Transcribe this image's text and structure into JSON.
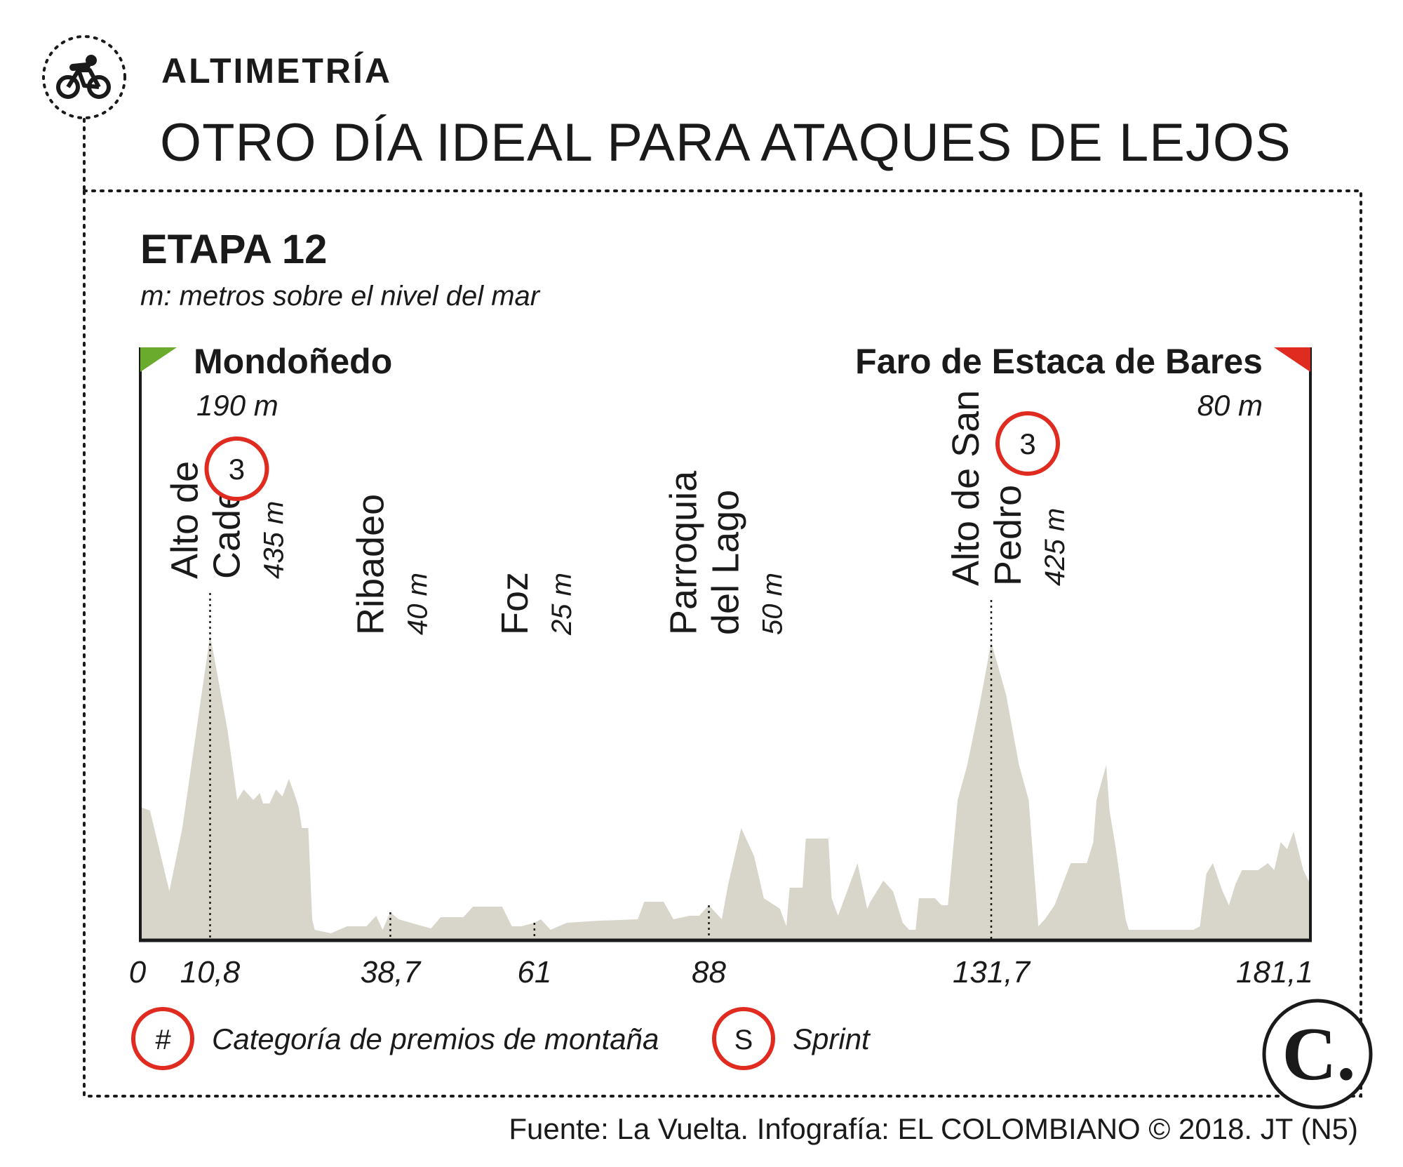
{
  "header": {
    "kicker": "ALTIMETRÍA",
    "headline": "OTRO DÍA IDEAL PARA ATAQUES DE LEJOS",
    "cyclist_icon": "cyclist-icon"
  },
  "stage": {
    "title": "ETAPA 12",
    "note": "m: metros sobre el nivel del mar"
  },
  "start": {
    "name": "Mondoñedo",
    "altitude": "190 m",
    "color": "#6aab2e"
  },
  "finish": {
    "name": "Faro de Estaca de Bares",
    "altitude": "80 m",
    "color": "#e02b20"
  },
  "chart_data": {
    "type": "area",
    "xlim": [
      0,
      181.1
    ],
    "ylim": [
      0,
      500
    ],
    "fill_color": "#d8d6ca",
    "x_ticks": [
      "0",
      "10,8",
      "38,7",
      "61",
      "88",
      "131,7",
      "181,1"
    ],
    "x_tick_values": [
      0,
      10.8,
      38.7,
      61,
      88,
      131.7,
      181.1
    ],
    "profile": [
      {
        "x": 0,
        "y": 190
      },
      {
        "x": 1.5,
        "y": 185
      },
      {
        "x": 4.5,
        "y": 70
      },
      {
        "x": 6.5,
        "y": 160
      },
      {
        "x": 10.8,
        "y": 435
      },
      {
        "x": 13.5,
        "y": 300
      },
      {
        "x": 15,
        "y": 200
      },
      {
        "x": 16,
        "y": 215
      },
      {
        "x": 17.5,
        "y": 200
      },
      {
        "x": 18.5,
        "y": 210
      },
      {
        "x": 19,
        "y": 195
      },
      {
        "x": 20,
        "y": 195
      },
      {
        "x": 21,
        "y": 215
      },
      {
        "x": 22,
        "y": 205
      },
      {
        "x": 23,
        "y": 230
      },
      {
        "x": 23.8,
        "y": 210
      },
      {
        "x": 24.5,
        "y": 190
      },
      {
        "x": 25,
        "y": 160
      },
      {
        "x": 26,
        "y": 160
      },
      {
        "x": 26.6,
        "y": 30
      },
      {
        "x": 27,
        "y": 15
      },
      {
        "x": 29.5,
        "y": 10
      },
      {
        "x": 32,
        "y": 20
      },
      {
        "x": 35,
        "y": 20
      },
      {
        "x": 36.5,
        "y": 35
      },
      {
        "x": 37.5,
        "y": 15
      },
      {
        "x": 38.7,
        "y": 40
      },
      {
        "x": 40,
        "y": 30
      },
      {
        "x": 43,
        "y": 22
      },
      {
        "x": 45,
        "y": 17
      },
      {
        "x": 46.5,
        "y": 33
      },
      {
        "x": 50,
        "y": 33
      },
      {
        "x": 51.5,
        "y": 48
      },
      {
        "x": 56,
        "y": 48
      },
      {
        "x": 57.5,
        "y": 20
      },
      {
        "x": 59,
        "y": 20
      },
      {
        "x": 61,
        "y": 25
      },
      {
        "x": 62,
        "y": 30
      },
      {
        "x": 63.5,
        "y": 15
      },
      {
        "x": 66,
        "y": 25
      },
      {
        "x": 71,
        "y": 28
      },
      {
        "x": 77,
        "y": 30
      },
      {
        "x": 78,
        "y": 55
      },
      {
        "x": 81,
        "y": 55
      },
      {
        "x": 82.5,
        "y": 30
      },
      {
        "x": 85,
        "y": 35
      },
      {
        "x": 86.5,
        "y": 35
      },
      {
        "x": 88,
        "y": 50
      },
      {
        "x": 89,
        "y": 40
      },
      {
        "x": 90,
        "y": 30
      },
      {
        "x": 91,
        "y": 80
      },
      {
        "x": 93,
        "y": 160
      },
      {
        "x": 95,
        "y": 120
      },
      {
        "x": 96.5,
        "y": 60
      },
      {
        "x": 99,
        "y": 45
      },
      {
        "x": 100,
        "y": 20
      },
      {
        "x": 100.5,
        "y": 75
      },
      {
        "x": 102.5,
        "y": 75
      },
      {
        "x": 103,
        "y": 145
      },
      {
        "x": 106.5,
        "y": 145
      },
      {
        "x": 107,
        "y": 60
      },
      {
        "x": 108,
        "y": 35
      },
      {
        "x": 111,
        "y": 110
      },
      {
        "x": 112.5,
        "y": 45
      },
      {
        "x": 113,
        "y": 55
      },
      {
        "x": 115,
        "y": 85
      },
      {
        "x": 116.5,
        "y": 70
      },
      {
        "x": 118,
        "y": 25
      },
      {
        "x": 119,
        "y": 15
      },
      {
        "x": 120,
        "y": 15
      },
      {
        "x": 120.5,
        "y": 60
      },
      {
        "x": 123,
        "y": 60
      },
      {
        "x": 124,
        "y": 50
      },
      {
        "x": 125,
        "y": 50
      },
      {
        "x": 126.5,
        "y": 200
      },
      {
        "x": 128,
        "y": 250
      },
      {
        "x": 130,
        "y": 340
      },
      {
        "x": 131.7,
        "y": 425
      },
      {
        "x": 134,
        "y": 350
      },
      {
        "x": 136,
        "y": 250
      },
      {
        "x": 137.5,
        "y": 200
      },
      {
        "x": 138.5,
        "y": 80
      },
      {
        "x": 139,
        "y": 20
      },
      {
        "x": 140,
        "y": 30
      },
      {
        "x": 141.5,
        "y": 50
      },
      {
        "x": 144,
        "y": 110
      },
      {
        "x": 146.5,
        "y": 110
      },
      {
        "x": 147.5,
        "y": 140
      },
      {
        "x": 148,
        "y": 200
      },
      {
        "x": 149.5,
        "y": 250
      },
      {
        "x": 150,
        "y": 185
      },
      {
        "x": 151,
        "y": 130
      },
      {
        "x": 152.5,
        "y": 30
      },
      {
        "x": 153,
        "y": 15
      },
      {
        "x": 163,
        "y": 15
      },
      {
        "x": 164,
        "y": 20
      },
      {
        "x": 165,
        "y": 95
      },
      {
        "x": 166,
        "y": 110
      },
      {
        "x": 167.5,
        "y": 70
      },
      {
        "x": 168.5,
        "y": 50
      },
      {
        "x": 169.5,
        "y": 80
      },
      {
        "x": 170.5,
        "y": 100
      },
      {
        "x": 173,
        "y": 100
      },
      {
        "x": 174.5,
        "y": 110
      },
      {
        "x": 175.5,
        "y": 100
      },
      {
        "x": 176.5,
        "y": 140
      },
      {
        "x": 177.5,
        "y": 130
      },
      {
        "x": 178.5,
        "y": 155
      },
      {
        "x": 180,
        "y": 100
      },
      {
        "x": 181.1,
        "y": 80
      }
    ],
    "annotations": [
      {
        "x": 10.8,
        "y": 435,
        "lines": [
          "Alto de",
          "Cadeira"
        ],
        "altitude": "435 m",
        "category": "3"
      },
      {
        "x": 38.7,
        "y": 40,
        "lines": [
          "Ribadeo"
        ],
        "altitude": "40 m",
        "category": ""
      },
      {
        "x": 61,
        "y": 25,
        "lines": [
          "Foz"
        ],
        "altitude": "25 m",
        "category": ""
      },
      {
        "x": 88,
        "y": 50,
        "lines": [
          "Parroquia",
          "del Lago"
        ],
        "altitude": "50 m",
        "category": ""
      },
      {
        "x": 131.7,
        "y": 425,
        "lines": [
          "Alto de San",
          "Pedro"
        ],
        "altitude": "425 m",
        "category": "3"
      }
    ]
  },
  "legend": [
    {
      "symbol": "#",
      "label": "Categoría de premios de montaña",
      "color": "#e02b20"
    },
    {
      "symbol": "S",
      "label": "Sprint",
      "color": "#e02b20"
    }
  ],
  "logo": "C.",
  "footer": {
    "source": "Fuente: La Vuelta. Infografía: EL COLOMBIANO © 2018. JT (N5)"
  }
}
